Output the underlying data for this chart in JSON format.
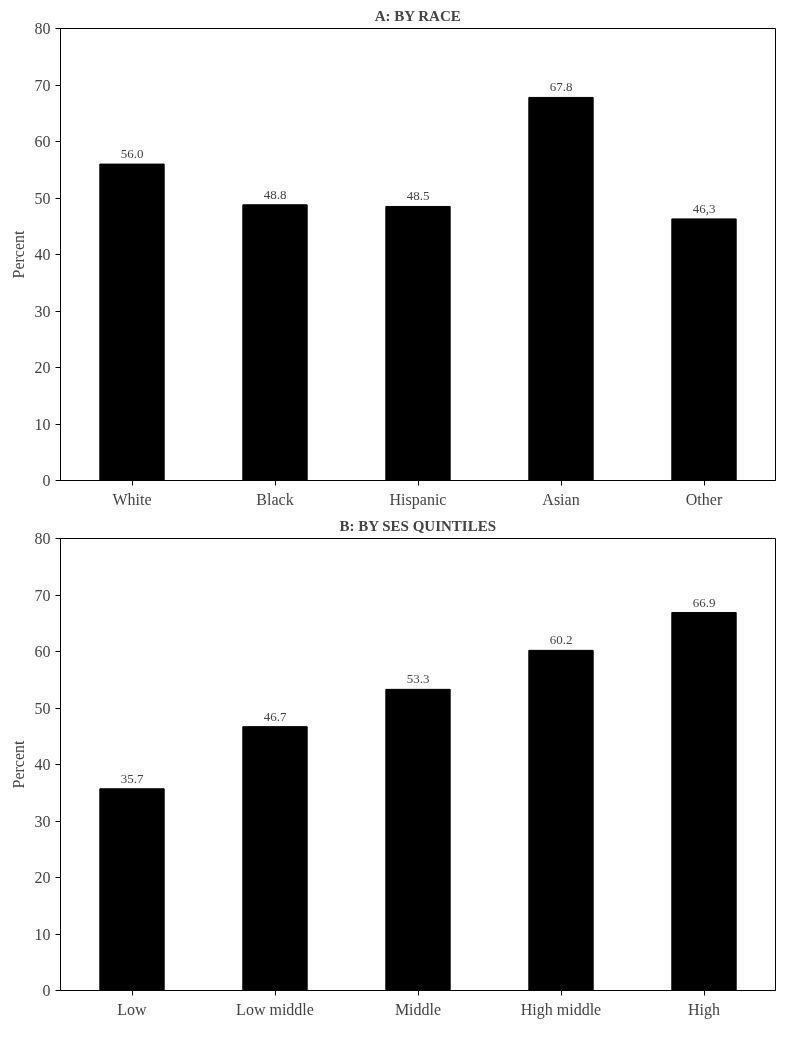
{
  "chart_data": [
    {
      "type": "bar",
      "title": "A: BY RACE",
      "ylabel": "Percent",
      "categories": [
        "White",
        "Black",
        "Hispanic",
        "Asian",
        "Other"
      ],
      "values": [
        56.0,
        48.8,
        48.5,
        67.8,
        46.3
      ],
      "value_labels": [
        "56.0",
        "48.8",
        "48.5",
        "67.8",
        "46,3"
      ],
      "color": "#000000",
      "ylim": [
        0,
        80
      ],
      "yticks": [
        0,
        10,
        20,
        30,
        40,
        50,
        60,
        70,
        80
      ],
      "grid": false
    },
    {
      "type": "bar",
      "title": "B: BY SES QUINTILES",
      "ylabel": "Percent",
      "categories": [
        "Low",
        "Low middle",
        "Middle",
        "High middle",
        "High"
      ],
      "values": [
        35.7,
        46.7,
        53.3,
        60.2,
        66.9
      ],
      "value_labels": [
        "35.7",
        "46.7",
        "53.3",
        "60.2",
        "66.9"
      ],
      "color": "#000000",
      "ylim": [
        0,
        80
      ],
      "yticks": [
        0,
        10,
        20,
        30,
        40,
        50,
        60,
        70,
        80
      ],
      "grid": false
    }
  ]
}
